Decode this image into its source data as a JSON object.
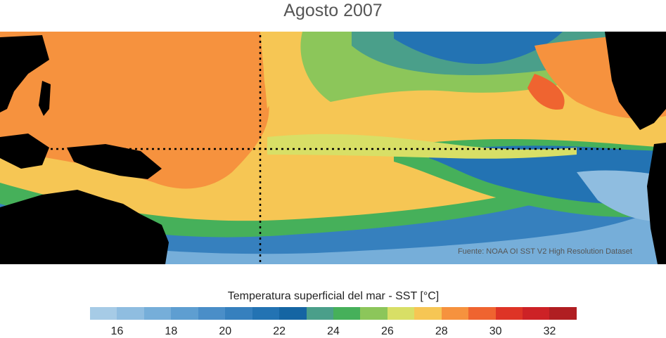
{
  "title": "Agosto 2007",
  "source": "Fuente: NOAA OI SST V2 High Resolution Dataset",
  "colorbar": {
    "label": "Temperatura superficial del mar - SST  [°C]",
    "min": 15,
    "max": 33,
    "colors": [
      "#a6cbe6",
      "#8fbde0",
      "#76aed9",
      "#5e9ed1",
      "#4a8ec8",
      "#3680be",
      "#2373b3",
      "#1565a3",
      "#4a9f8a",
      "#46b05a",
      "#8cc65a",
      "#d8df66",
      "#f6c654",
      "#f6923e",
      "#ef6430",
      "#de3426",
      "#cd2226",
      "#b01e22"
    ],
    "ticks": [
      "16",
      "18",
      "20",
      "22",
      "24",
      "26",
      "28",
      "30",
      "32"
    ]
  }
}
